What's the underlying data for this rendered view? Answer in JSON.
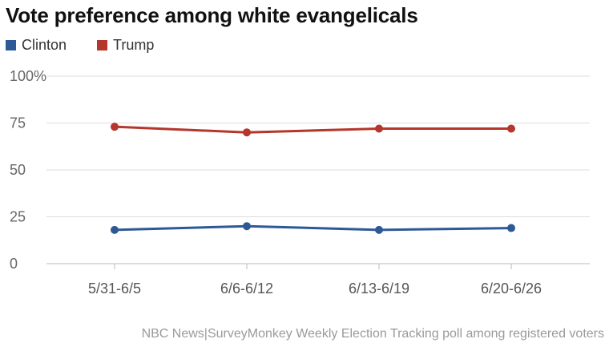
{
  "chart_data": {
    "type": "line",
    "title": "Vote preference among white evangelicals",
    "categories": [
      "5/31-6/5",
      "6/6-6/12",
      "6/13-6/19",
      "6/20-6/26"
    ],
    "series": [
      {
        "name": "Clinton",
        "color": "#2d5a96",
        "values": [
          18,
          20,
          18,
          19
        ]
      },
      {
        "name": "Trump",
        "color": "#b5362b",
        "values": [
          73,
          70,
          72,
          72
        ]
      }
    ],
    "yticks": [
      "100%",
      "75",
      "50",
      "25",
      "0"
    ],
    "ytick_values": [
      100,
      75,
      50,
      25,
      0
    ],
    "ylim": [
      0,
      100
    ],
    "grid": true,
    "legend_position": "top-left",
    "source": "NBC News|SurveyMonkey Weekly Election Tracking poll among registered voters"
  }
}
